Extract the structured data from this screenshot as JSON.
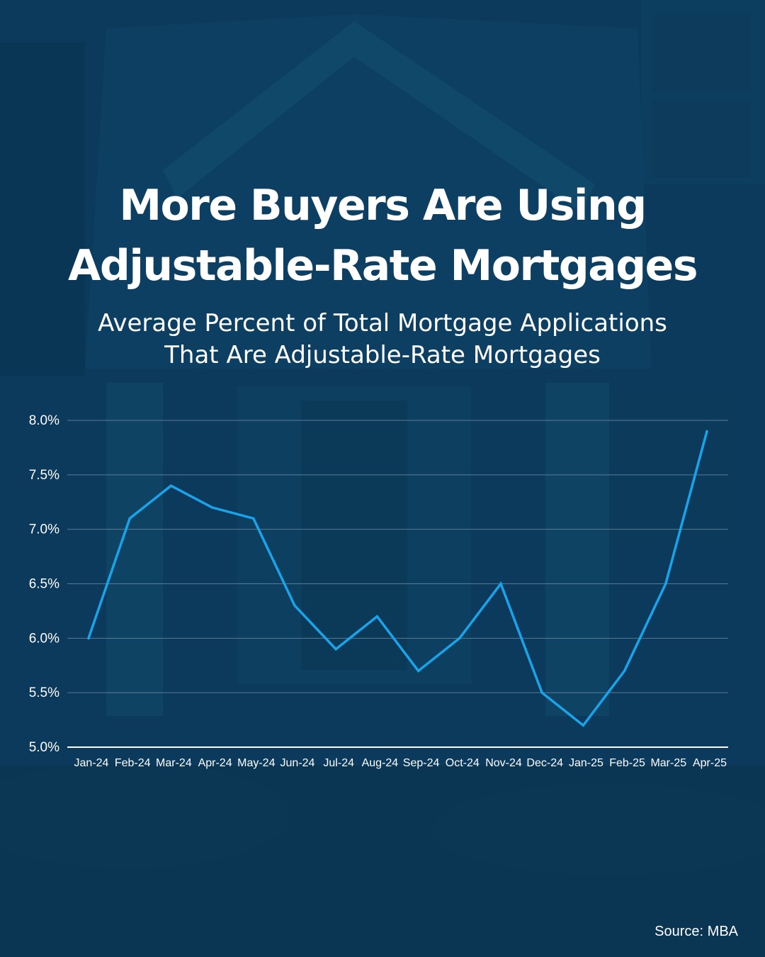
{
  "header": {
    "title_line1": "More Buyers Are Using",
    "title_line2": "Adjustable-Rate Mortgages",
    "subtitle_line1": "Average Percent of Total Mortgage Applications",
    "subtitle_line2": "That Are Adjustable-Rate Mortgages"
  },
  "footer": {
    "source": "Source: MBA"
  },
  "colors": {
    "background": "#0b3a5c",
    "line": "#1ba3ea",
    "text": "#ffffff",
    "gridline": "#6f8ca3"
  },
  "chart_data": {
    "type": "line",
    "title": "",
    "xlabel": "",
    "ylabel": "",
    "categories": [
      "Jan-24",
      "Feb-24",
      "Mar-24",
      "Apr-24",
      "May-24",
      "Jun-24",
      "Jul-24",
      "Aug-24",
      "Sep-24",
      "Oct-24",
      "Nov-24",
      "Dec-24",
      "Jan-25",
      "Feb-25",
      "Mar-25",
      "Apr-25"
    ],
    "series": [
      {
        "values": [
          6.0,
          7.1,
          7.4,
          7.2,
          7.1,
          6.3,
          5.9,
          6.2,
          5.7,
          6.0,
          6.5,
          5.5,
          5.2,
          5.7,
          6.5,
          7.9
        ]
      }
    ],
    "ylim": [
      5.0,
      8.0
    ],
    "y_ticks": [
      "5.0%",
      "5.5%",
      "6.0%",
      "6.5%",
      "7.0%",
      "7.5%",
      "8.0%"
    ],
    "grid": true,
    "legend": "none"
  }
}
